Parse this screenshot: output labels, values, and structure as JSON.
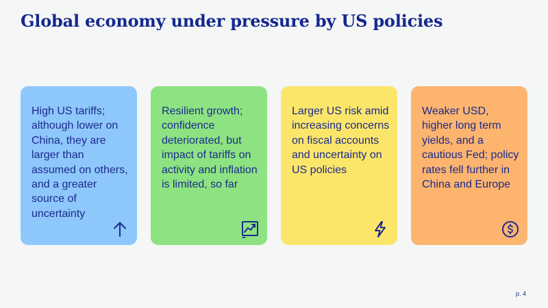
{
  "slide": {
    "title": "Global economy under pressure by US policies",
    "page_number": "p. 4"
  },
  "cards": [
    {
      "text": "High US tariffs; although lower on China, they are larger than assumed on others, and a greater source of uncertainty",
      "icon": "arrow-up-icon",
      "color": "#8ec7fb"
    },
    {
      "text": "Resilient growth; confidence deteriorated,  but impact of tariffs on activity and inflation is limited, so far",
      "icon": "trend-chart-icon",
      "color": "#8de381"
    },
    {
      "text": "Larger US risk amid increasing concerns on fiscal accounts and uncertainty on US policies",
      "icon": "lightning-icon",
      "color": "#fce66a"
    },
    {
      "text": "Weaker USD, higher long term yields, and a cautious Fed; policy rates fell further in China and Europe",
      "icon": "dollar-coin-icon",
      "color": "#fdb46f"
    }
  ],
  "colors": {
    "background": "#f5f6f6",
    "title": "#14288f",
    "text": "#1b2a8c",
    "icon": "#1b2a8c"
  }
}
